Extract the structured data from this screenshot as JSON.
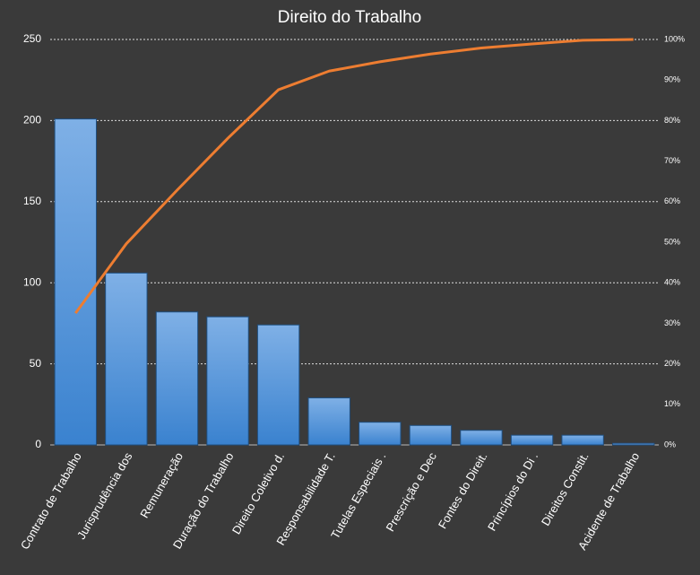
{
  "chart_data": {
    "type": "pareto",
    "title": "Direito do Trabalho",
    "categories": [
      "Contrato de Trabalho",
      "Jurisprudência dos",
      "Remuneração",
      "Duração do Trabalho",
      "Direito Coletivo d.",
      "Responsabilidade T.",
      "Tutelas Especiais .",
      "Prescrição e Dec",
      "Fontes do Direit.",
      "Princípios do Di .",
      "Direitos Constit.",
      "Acidente de Trabalho"
    ],
    "series": [
      {
        "type": "bar",
        "color": "#4a90d9",
        "values": [
          201,
          106,
          82,
          79,
          74,
          29,
          14,
          12,
          9,
          6,
          6,
          1
        ]
      },
      {
        "type": "line",
        "axis": "y2",
        "color": "#ed7d31",
        "values": [
          32.5,
          49.6,
          62.8,
          75.6,
          87.6,
          92.2,
          94.5,
          96.4,
          97.9,
          98.9,
          99.8,
          100
        ]
      }
    ],
    "ylim": [
      0,
      250
    ],
    "yticks": [
      0,
      50,
      100,
      150,
      200,
      250
    ],
    "y2lim": [
      0,
      100
    ],
    "y2ticks": [
      {
        "value": 0,
        "label": "0%"
      },
      {
        "value": 10,
        "label": "10%"
      },
      {
        "value": 20,
        "label": "20%"
      },
      {
        "value": 30,
        "label": "30%"
      },
      {
        "value": 40,
        "label": "40%"
      },
      {
        "value": 50,
        "label": "50%"
      },
      {
        "value": 60,
        "label": "60%"
      },
      {
        "value": 70,
        "label": "70%"
      },
      {
        "value": 80,
        "label": "80%"
      },
      {
        "value": 90,
        "label": "90%"
      },
      {
        "value": 100,
        "label": "100%"
      }
    ],
    "grid": true
  }
}
